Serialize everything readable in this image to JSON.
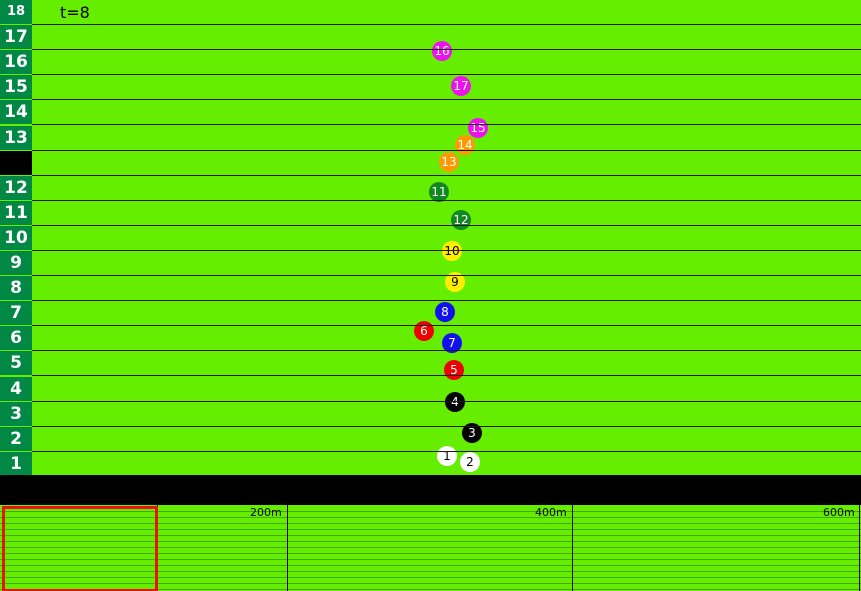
{
  "time_label": "t=8",
  "lanes": [
    {
      "label": "18",
      "style": "top"
    },
    {
      "label": "17",
      "style": "normal"
    },
    {
      "label": "16",
      "style": "normal"
    },
    {
      "label": "15",
      "style": "normal"
    },
    {
      "label": "14",
      "style": "normal"
    },
    {
      "label": "13",
      "style": "normal"
    },
    {
      "label": "",
      "style": "blank"
    },
    {
      "label": "12",
      "style": "normal"
    },
    {
      "label": "11",
      "style": "normal"
    },
    {
      "label": "10",
      "style": "normal"
    },
    {
      "label": "9",
      "style": "normal"
    },
    {
      "label": "8",
      "style": "normal"
    },
    {
      "label": "7",
      "style": "normal"
    },
    {
      "label": "6",
      "style": "normal"
    },
    {
      "label": "5",
      "style": "normal"
    },
    {
      "label": "4",
      "style": "normal"
    },
    {
      "label": "3",
      "style": "normal"
    },
    {
      "label": "2",
      "style": "normal"
    },
    {
      "label": "1",
      "style": "normal"
    }
  ],
  "horses": [
    {
      "number": "1",
      "color": "#ffffff",
      "text_color": "#000000"
    },
    {
      "number": "2",
      "color": "#ffffff",
      "text_color": "#000000"
    },
    {
      "number": "3",
      "color": "#000000",
      "text_color": "#ffffff"
    },
    {
      "number": "4",
      "color": "#000000",
      "text_color": "#ffffff"
    },
    {
      "number": "5",
      "color": "#ee0000",
      "text_color": "#ffffff"
    },
    {
      "number": "6",
      "color": "#ee0000",
      "text_color": "#ffffff"
    },
    {
      "number": "7",
      "color": "#1111ee",
      "text_color": "#ffffff"
    },
    {
      "number": "8",
      "color": "#1111ee",
      "text_color": "#ffffff"
    },
    {
      "number": "9",
      "color": "#ffee00",
      "text_color": "#000000"
    },
    {
      "number": "10",
      "color": "#ffee00",
      "text_color": "#000000"
    },
    {
      "number": "11",
      "color": "#118822",
      "text_color": "#ffffff"
    },
    {
      "number": "12",
      "color": "#118822",
      "text_color": "#ffffff"
    },
    {
      "number": "13",
      "color": "#ff9900",
      "text_color": "#ffffff"
    },
    {
      "number": "14",
      "color": "#ff9900",
      "text_color": "#ffffff"
    },
    {
      "number": "15",
      "color": "#ee11ee",
      "text_color": "#ffffff"
    },
    {
      "number": "16",
      "color": "#ee11ee",
      "text_color": "#ffffff"
    },
    {
      "number": "17",
      "color": "#ee11ee",
      "text_color": "#ffffff"
    }
  ],
  "minimap": {
    "distance_labels": [
      "200m",
      "400m",
      "600m"
    ]
  }
}
